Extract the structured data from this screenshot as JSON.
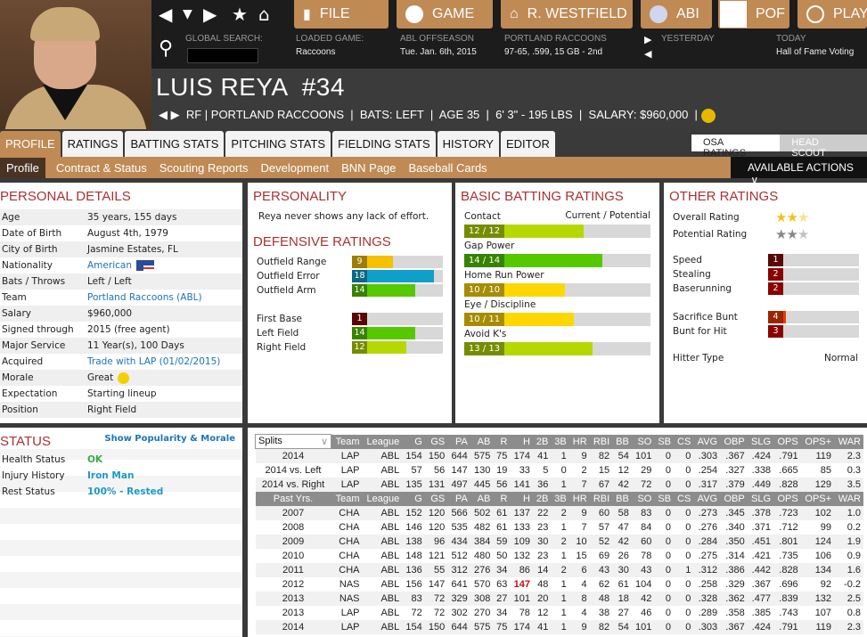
{
  "nav": {
    "file": "FILE",
    "game": "GAME",
    "manager": "R. WESTFIELD",
    "league": "ABI",
    "team": "POF",
    "play": "PLAY"
  },
  "info": {
    "search_label": "GLOBAL SEARCH:",
    "loaded_label": "LOADED GAME:",
    "loaded_value": "Raccoons",
    "season_label": "ABL OFFSEASON",
    "season_value": "Tue. Jan. 6th, 2015",
    "team_label": "PORTLAND RACCOONS",
    "team_value": "97-65, .599, 15 GB - 2nd",
    "yesterday_label": "YESTERDAY",
    "today_label": "TODAY",
    "today_value": "Hall of Fame Voting"
  },
  "player": {
    "name": "LUIS REYA  #34",
    "line": "RF | PORTLAND RACCOONS  |  BATS: LEFT  |  AGE 35  |  6' 3\" - 195 LBS  |  SALARY: $960,000  |"
  },
  "tabs": [
    "PROFILE",
    "RATINGS",
    "BATTING STATS",
    "PITCHING STATS",
    "FIELDING STATS",
    "HISTORY",
    "EDITOR"
  ],
  "scout": {
    "osa": "OSA RATINGS",
    "head": "HEAD SCOUT"
  },
  "subtabs": [
    "Profile",
    "Contract & Status",
    "Scouting Reports",
    "Development",
    "BNN Page",
    "Baseball Cards"
  ],
  "actions": "AVAILABLE ACTIONS",
  "personal": {
    "title": "PERSONAL DETAILS",
    "rows": [
      [
        "Age",
        "35 years, 155 days"
      ],
      [
        "Date of Birth",
        "August 4th, 1979"
      ],
      [
        "City of Birth",
        "Jasmine Estates, FL"
      ],
      [
        "Nationality",
        "American"
      ],
      [
        "Bats / Throws",
        "Left / Left"
      ],
      [
        "Team",
        "Portland Raccoons (ABL)"
      ],
      [
        "Salary",
        "$960,000"
      ],
      [
        "Signed through",
        "2015 (free agent)"
      ],
      [
        "Major Service",
        "11 Year(s), 100 Days"
      ],
      [
        "Acquired",
        "Trade with LAP (01/02/2015)"
      ],
      [
        "Morale",
        "Great"
      ],
      [
        "Expectation",
        "Starting lineup"
      ],
      [
        "Position",
        "Right Field"
      ]
    ]
  },
  "personality": {
    "title": "PERSONALITY",
    "text": "Reya never shows any lack of effort."
  },
  "defense": {
    "title": "DEFENSIVE RATINGS",
    "rows": [
      {
        "label": "Outfield Range",
        "value": 9,
        "color": "#f5c000"
      },
      {
        "label": "Outfield Error",
        "value": 18,
        "color": "#0ea0c8"
      },
      {
        "label": "Outfield Arm",
        "value": 14,
        "color": "#55c800"
      },
      {
        "label": "First Base",
        "value": 1,
        "color": "#8a0a0a"
      },
      {
        "label": "Left Field",
        "value": 14,
        "color": "#55c800"
      },
      {
        "label": "Right Field",
        "value": 12,
        "color": "#b6d800"
      }
    ]
  },
  "batting": {
    "title": "BASIC BATTING RATINGS",
    "cp": "Current / Potential",
    "rows": [
      {
        "label": "Contact",
        "text": "12 / 12",
        "value": 12,
        "color": "#b6d800"
      },
      {
        "label": "Gap Power",
        "text": "14 / 14",
        "value": 14,
        "color": "#55c800"
      },
      {
        "label": "Home Run Power",
        "text": "10 / 10",
        "value": 10,
        "color": "#ffd700"
      },
      {
        "label": "Eye / Discipline",
        "text": "10 / 11",
        "value": 11,
        "color": "#ffd700"
      },
      {
        "label": "Avoid K's",
        "text": "13 / 13",
        "value": 13,
        "color": "#b6d800"
      }
    ]
  },
  "other": {
    "title": "OTHER RATINGS",
    "overall_label": "Overall Rating",
    "overall_stars": 2.5,
    "potential_label": "Potential Rating",
    "potential_stars": 2.5,
    "rows": [
      {
        "label": "Speed",
        "value": 1,
        "color": "#8a0a0a"
      },
      {
        "label": "Stealing",
        "value": 2,
        "color": "#d40000"
      },
      {
        "label": "Baserunning",
        "value": 2,
        "color": "#d40000"
      },
      {
        "label": "Sacrifice Bunt",
        "value": 4,
        "color": "#ee3a00"
      },
      {
        "label": "Bunt for Hit",
        "value": 3,
        "color": "#d40000"
      }
    ],
    "hitter_label": "Hitter Type",
    "hitter_value": "Normal"
  },
  "status": {
    "title": "STATUS",
    "link": "Show Popularity & Morale",
    "rows": [
      [
        "Health Status",
        "OK"
      ],
      [
        "Injury History",
        "Iron Man"
      ],
      [
        "Rest Status",
        "100% - Rested"
      ]
    ]
  },
  "stats": {
    "splits_select": "Splits",
    "headers": [
      "Team",
      "League",
      "G",
      "GS",
      "PA",
      "AB",
      "R",
      "H",
      "2B",
      "3B",
      "HR",
      "RBI",
      "BB",
      "SO",
      "SB",
      "CS",
      "AVG",
      "OBP",
      "SLG",
      "OPS",
      "OPS+",
      "WAR"
    ],
    "past_label": "Past Yrs.",
    "splits": [
      [
        "2014",
        "LAP",
        "ABL",
        "154",
        "150",
        "644",
        "575",
        "75",
        "174",
        "41",
        "1",
        "9",
        "82",
        "54",
        "101",
        "0",
        "0",
        ".303",
        ".367",
        ".424",
        ".791",
        "119",
        "2.3"
      ],
      [
        "2014 vs. Left",
        "LAP",
        "ABL",
        "57",
        "56",
        "147",
        "130",
        "19",
        "33",
        "5",
        "0",
        "2",
        "15",
        "12",
        "29",
        "0",
        "0",
        ".254",
        ".327",
        ".338",
        ".665",
        "85",
        "0.3"
      ],
      [
        "2014 vs. Right",
        "LAP",
        "ABL",
        "135",
        "131",
        "497",
        "445",
        "56",
        "141",
        "36",
        "1",
        "7",
        "67",
        "42",
        "72",
        "0",
        "0",
        ".317",
        ".379",
        ".449",
        ".828",
        "129",
        "3.5"
      ]
    ],
    "years": [
      [
        "2007",
        "CHA",
        "ABL",
        "152",
        "120",
        "566",
        "502",
        "61",
        "137",
        "22",
        "2",
        "9",
        "60",
        "58",
        "83",
        "0",
        "0",
        ".273",
        ".345",
        ".378",
        ".723",
        "102",
        "1.0"
      ],
      [
        "2008",
        "CHA",
        "ABL",
        "146",
        "120",
        "535",
        "482",
        "61",
        "133",
        "23",
        "1",
        "7",
        "57",
        "47",
        "84",
        "0",
        "0",
        ".276",
        ".340",
        ".371",
        ".712",
        "99",
        "0.2"
      ],
      [
        "2009",
        "CHA",
        "ABL",
        "138",
        "96",
        "434",
        "384",
        "59",
        "109",
        "30",
        "2",
        "10",
        "52",
        "42",
        "60",
        "0",
        "0",
        ".284",
        ".350",
        ".451",
        ".801",
        "124",
        "1.9"
      ],
      [
        "2010",
        "CHA",
        "ABL",
        "148",
        "121",
        "512",
        "480",
        "50",
        "132",
        "23",
        "1",
        "15",
        "69",
        "26",
        "78",
        "0",
        "0",
        ".275",
        ".314",
        ".421",
        ".735",
        "106",
        "0.9"
      ],
      [
        "2011",
        "CHA",
        "ABL",
        "136",
        "55",
        "312",
        "276",
        "34",
        "86",
        "14",
        "2",
        "6",
        "43",
        "30",
        "43",
        "0",
        "1",
        ".312",
        ".386",
        ".442",
        ".828",
        "134",
        "1.6"
      ],
      [
        "2012",
        "NAS",
        "ABL",
        "156",
        "147",
        "641",
        "570",
        "63",
        "147",
        "48",
        "1",
        "4",
        "62",
        "61",
        "104",
        "0",
        "0",
        ".258",
        ".329",
        ".367",
        ".696",
        "92",
        "-0.2"
      ],
      [
        "2013",
        "NAS",
        "ABL",
        "83",
        "72",
        "329",
        "308",
        "27",
        "101",
        "20",
        "1",
        "8",
        "48",
        "18",
        "42",
        "0",
        "0",
        ".328",
        ".362",
        ".477",
        ".839",
        "132",
        "2.5"
      ],
      [
        "2013",
        "LAP",
        "ABL",
        "72",
        "72",
        "302",
        "270",
        "34",
        "78",
        "12",
        "1",
        "4",
        "38",
        "27",
        "46",
        "0",
        "0",
        ".289",
        ".358",
        ".385",
        ".743",
        "107",
        "0.8"
      ],
      [
        "2014",
        "LAP",
        "ABL",
        "154",
        "150",
        "644",
        "575",
        "75",
        "174",
        "41",
        "1",
        "9",
        "82",
        "54",
        "101",
        "0",
        "0",
        ".303",
        ".367",
        ".424",
        ".791",
        "119",
        "2.3"
      ]
    ]
  }
}
